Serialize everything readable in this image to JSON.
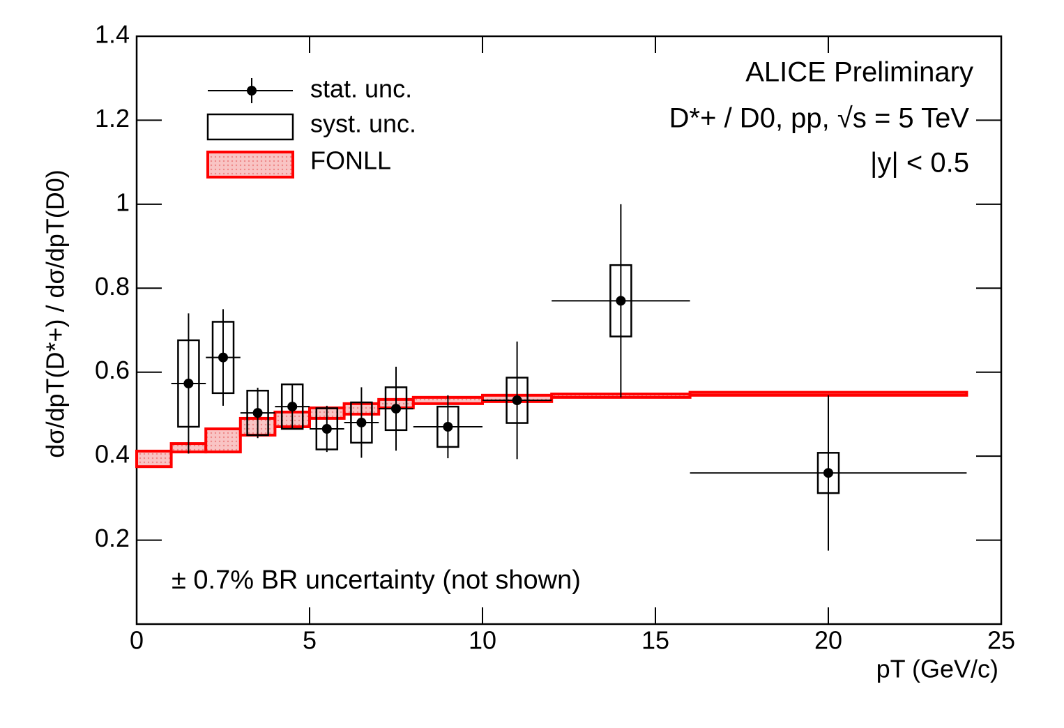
{
  "chart_data": {
    "type": "errorbar",
    "x_label": "pT (GeV/c)",
    "y_label": "dσ/dpT(D*+) / dσ/dpT(D0)",
    "annotations": [
      "ALICE Preliminary",
      "D*+ / D0, pp, √s = 5 TeV",
      "|y| < 0.5",
      "± 0.7% BR uncertainty (not shown)"
    ],
    "xlim": [
      0,
      25
    ],
    "xticks": [
      0,
      5,
      10,
      15,
      20,
      25
    ],
    "ylim": [
      0,
      1.4
    ],
    "yticks": [
      0.2,
      0.4,
      0.6,
      0.8,
      1,
      1.2,
      1.4
    ],
    "measurement": {
      "stat_label": "stat. unc.",
      "syst_label": "syst. unc.",
      "color": "#000000",
      "x": [
        1.5,
        2.5,
        3.5,
        4.5,
        5.5,
        6.5,
        7.5,
        9,
        11,
        14,
        20
      ],
      "x_err": [
        0.5,
        0.5,
        0.5,
        0.5,
        0.5,
        0.5,
        0.5,
        1,
        1,
        2,
        4
      ],
      "values": [
        0.573,
        0.635,
        0.503,
        0.518,
        0.465,
        0.48,
        0.513,
        0.47,
        0.533,
        0.77,
        0.36
      ],
      "stat_err": [
        0.167,
        0.115,
        0.06,
        0.053,
        0.055,
        0.084,
        0.1,
        0.075,
        0.14,
        0.23,
        0.185
      ],
      "syst_err": [
        0.103,
        0.085,
        0.053,
        0.053,
        0.049,
        0.048,
        0.051,
        0.048,
        0.054,
        0.085,
        0.048
      ]
    },
    "fonll": {
      "name": "FONLL",
      "color": "#ff0000",
      "bins": [
        0,
        1,
        2,
        3,
        4,
        5,
        6,
        7,
        8,
        10,
        12,
        16,
        24
      ],
      "low": [
        0.375,
        0.41,
        0.41,
        0.45,
        0.47,
        0.49,
        0.5,
        0.515,
        0.525,
        0.53,
        0.54,
        0.545
      ],
      "high": [
        0.412,
        0.43,
        0.465,
        0.49,
        0.505,
        0.515,
        0.525,
        0.535,
        0.54,
        0.545,
        0.548,
        0.552
      ]
    }
  }
}
